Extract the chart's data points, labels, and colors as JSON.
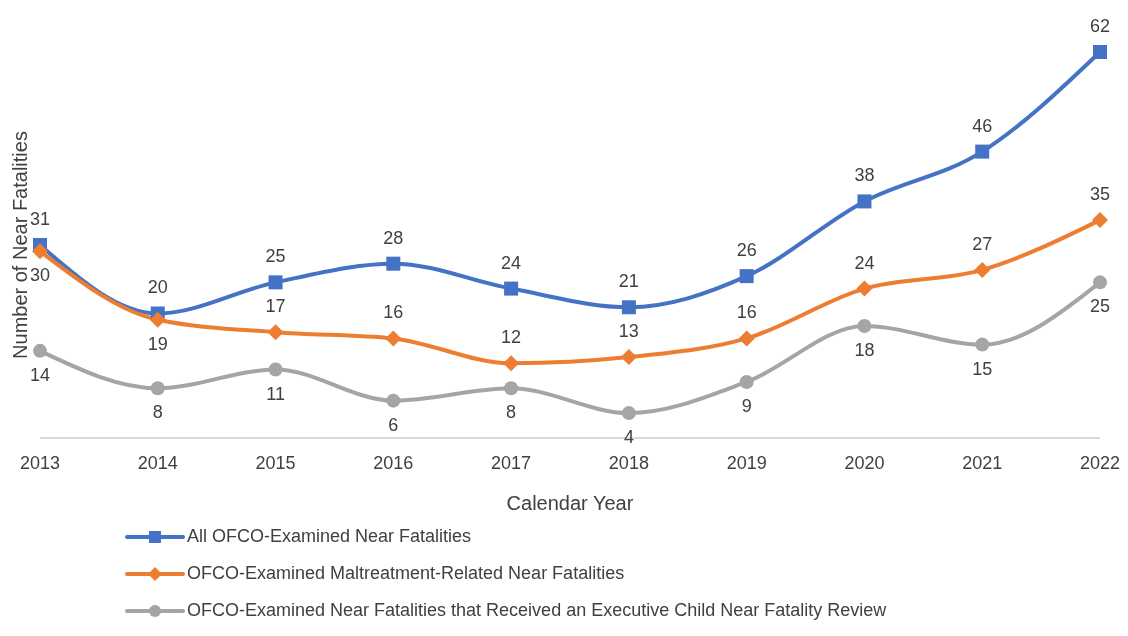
{
  "chart_data": {
    "type": "line",
    "xlabel": "Calendar Year",
    "ylabel": "Number of Near Fatalities",
    "categories": [
      "2013",
      "2014",
      "2015",
      "2016",
      "2017",
      "2018",
      "2019",
      "2020",
      "2021",
      "2022"
    ],
    "series": [
      {
        "name": "All OFCO-Examined Near Fatalities",
        "color": "#4472c4",
        "marker": "square",
        "values": [
          31,
          20,
          25,
          28,
          24,
          21,
          26,
          38,
          46,
          62
        ]
      },
      {
        "name": "OFCO-Examined Maltreatment-Related Near Fatalities",
        "color": "#ed7d31",
        "marker": "diamond",
        "values": [
          30,
          19,
          17,
          16,
          12,
          13,
          16,
          24,
          27,
          35
        ]
      },
      {
        "name": "OFCO-Examined Near Fatalities that Received an Executive Child Near Fatality Review",
        "color": "#a5a5a5",
        "marker": "circle",
        "values": [
          14,
          8,
          11,
          6,
          8,
          4,
          9,
          18,
          15,
          25
        ]
      }
    ],
    "data_labels": true,
    "grid": false,
    "legend": "bottom",
    "tick_labels": "x",
    "line_style": "solid"
  }
}
